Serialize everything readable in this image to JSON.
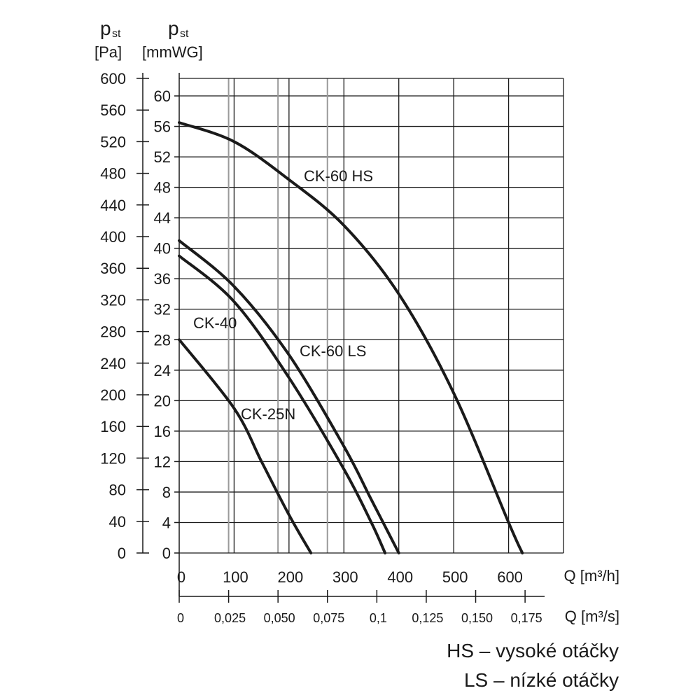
{
  "chart_data": {
    "type": "line",
    "y_axis_pa": {
      "symbol": "p",
      "subscript": "st",
      "unit": "[Pa]",
      "ticks": [
        0,
        40,
        80,
        120,
        160,
        200,
        240,
        280,
        320,
        360,
        400,
        440,
        480,
        520,
        560,
        600
      ],
      "range": [
        0,
        600
      ]
    },
    "y_axis_mmwg": {
      "symbol": "p",
      "subscript": "st",
      "unit": "[mmWG]",
      "ticks": [
        0,
        4,
        8,
        12,
        16,
        20,
        24,
        28,
        32,
        36,
        40,
        44,
        48,
        52,
        56,
        60
      ],
      "range": [
        0,
        62.3
      ]
    },
    "x_axis_m3h": {
      "label": "Q [m³/h]",
      "ticks": [
        0,
        100,
        200,
        300,
        400,
        500,
        600
      ],
      "range": [
        0,
        700
      ]
    },
    "x_axis_m3s": {
      "label": "Q [m³/s]",
      "ticks": [
        "0",
        "0,025",
        "0,050",
        "0,075",
        "0,1",
        "0,125",
        "0,150",
        "0,175"
      ],
      "tick_values": [
        0,
        0.025,
        0.05,
        0.075,
        0.1,
        0.125,
        0.15,
        0.175
      ]
    },
    "grid": true,
    "series": [
      {
        "name": "CK-60 HS",
        "x": [
          0,
          100,
          200,
          300,
          400,
          500,
          600,
          625
        ],
        "y": [
          56.5,
          54,
          49,
          43,
          34,
          21,
          4,
          0
        ]
      },
      {
        "name": "CK-60 LS",
        "x": [
          0,
          100,
          200,
          300,
          350,
          400
        ],
        "y": [
          41,
          35,
          26,
          14,
          7,
          0
        ]
      },
      {
        "name": "CK-40",
        "x": [
          0,
          100,
          200,
          300,
          350,
          375
        ],
        "y": [
          39,
          33,
          23,
          11,
          4,
          0
        ]
      },
      {
        "name": "CK-25N",
        "x": [
          0,
          100,
          150,
          200,
          240
        ],
        "y": [
          28,
          19,
          12,
          5,
          0
        ]
      }
    ]
  },
  "legend": {
    "hs": "HS – vysoké otáčky",
    "ls": "LS – nízké otáčky"
  }
}
